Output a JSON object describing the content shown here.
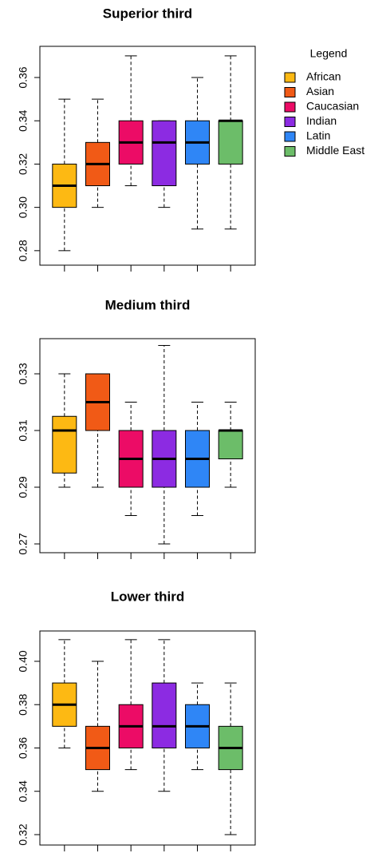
{
  "chart_data": [
    {
      "type": "box",
      "title": "Superior third",
      "ylim": [
        0.2733,
        0.3744
      ],
      "yticks": [
        0.28,
        {
          "value": 0.3,
          "label": "0.30"
        },
        0.32,
        0.34,
        0.36
      ],
      "boxes": [
        {
          "min": 0.28,
          "q1": 0.3,
          "median": 0.31,
          "q3": 0.32,
          "max": 0.35
        },
        {
          "min": 0.3,
          "q1": 0.31,
          "median": 0.32,
          "q3": 0.33,
          "max": 0.35
        },
        {
          "min": 0.31,
          "q1": 0.32,
          "median": 0.33,
          "q3": 0.34,
          "max": 0.37
        },
        {
          "min": 0.3,
          "q1": 0.31,
          "median": 0.33,
          "q3": 0.34,
          "max": 0.34
        },
        {
          "min": 0.29,
          "q1": 0.32,
          "median": 0.33,
          "q3": 0.34,
          "max": 0.36
        },
        {
          "min": 0.29,
          "q1": 0.32,
          "median": 0.34,
          "q3": 0.34,
          "max": 0.37
        }
      ]
    },
    {
      "type": "box",
      "title": "Medium third",
      "ylim": [
        0.2669,
        0.3424
      ],
      "yticks": [
        0.27,
        0.29,
        0.31,
        0.33
      ],
      "boxes": [
        {
          "min": 0.29,
          "q1": 0.295,
          "median": 0.31,
          "q3": 0.315,
          "max": 0.33
        },
        {
          "min": 0.29,
          "q1": 0.31,
          "median": 0.32,
          "q3": 0.33,
          "max": 0.33
        },
        {
          "min": 0.28,
          "q1": 0.29,
          "median": 0.3,
          "q3": 0.31,
          "max": 0.32
        },
        {
          "min": 0.27,
          "q1": 0.29,
          "median": 0.3,
          "q3": 0.31,
          "max": 0.34
        },
        {
          "min": 0.28,
          "q1": 0.29,
          "median": 0.3,
          "q3": 0.31,
          "max": 0.32
        },
        {
          "min": 0.29,
          "q1": 0.3,
          "median": 0.31,
          "q3": 0.31,
          "max": 0.32
        }
      ]
    },
    {
      "type": "box",
      "title": "Lower third",
      "ylim": [
        0.3152,
        0.414
      ],
      "yticks": [
        0.32,
        0.34,
        0.36,
        0.38,
        {
          "value": 0.4,
          "label": "0.40"
        }
      ],
      "boxes": [
        {
          "min": 0.36,
          "q1": 0.37,
          "median": 0.38,
          "q3": 0.39,
          "max": 0.41
        },
        {
          "min": 0.34,
          "q1": 0.35,
          "median": 0.36,
          "q3": 0.37,
          "max": 0.4
        },
        {
          "min": 0.35,
          "q1": 0.36,
          "median": 0.37,
          "q3": 0.38,
          "max": 0.41
        },
        {
          "min": 0.34,
          "q1": 0.36,
          "median": 0.37,
          "q3": 0.39,
          "max": 0.41
        },
        {
          "min": 0.35,
          "q1": 0.36,
          "median": 0.37,
          "q3": 0.38,
          "max": 0.39
        },
        {
          "min": 0.32,
          "q1": 0.35,
          "median": 0.36,
          "q3": 0.37,
          "max": 0.39
        }
      ]
    }
  ],
  "legend": {
    "title": "Legend",
    "entries": [
      {
        "name": "African",
        "color": "#fdb913"
      },
      {
        "name": "Asian",
        "color": "#f15a16"
      },
      {
        "name": "Caucasian",
        "color": "#ec0c66"
      },
      {
        "name": "Indian",
        "color": "#8c2be2"
      },
      {
        "name": "Latin",
        "color": "#2f86f6"
      },
      {
        "name": "Middle East",
        "color": "#6cbd69"
      }
    ]
  }
}
